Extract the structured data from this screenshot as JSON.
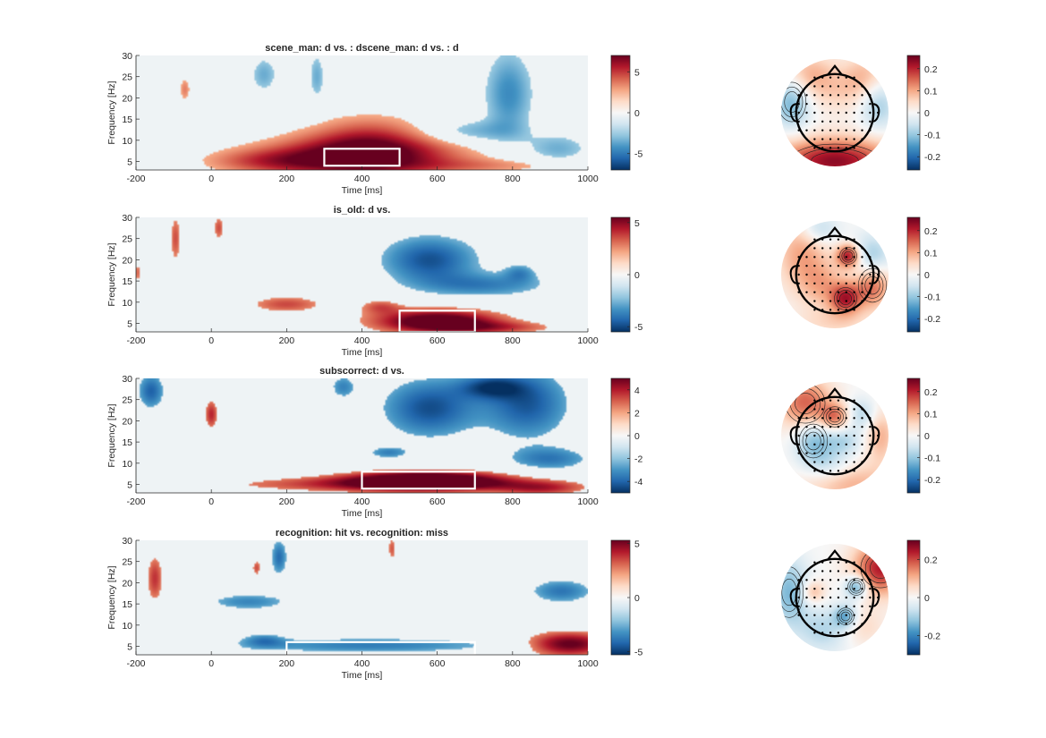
{
  "figure": {
    "x_ticks": [
      "-200",
      "0",
      "200",
      "400",
      "600",
      "800",
      "1000"
    ],
    "y_ticks": [
      "5",
      "10",
      "15",
      "20",
      "25",
      "30"
    ],
    "xlabel": "Time [ms]",
    "ylabel": "Frequency [Hz]"
  },
  "colors": {
    "colormap": [
      "#053061",
      "#2166ac",
      "#4393c3",
      "#92c5de",
      "#d1e5f0",
      "#f7f7f7",
      "#fddbc7",
      "#f4a582",
      "#d6604d",
      "#b2182b",
      "#67001f"
    ],
    "plot_background": "#eef3f5",
    "roi_box": "#ffffff"
  },
  "chart_data": [
    {
      "type": "heatmap",
      "title": "scene_man: d vs. : dscene_man: d vs. : d",
      "xlabel": "Time [ms]",
      "ylabel": "Frequency [Hz]",
      "xlim": [
        -200,
        1000
      ],
      "ylim": [
        3,
        30
      ],
      "x_ticks": [
        -200,
        0,
        200,
        400,
        600,
        800,
        1000
      ],
      "y_ticks": [
        5,
        10,
        15,
        20,
        25,
        30
      ],
      "clim": [
        -7,
        7
      ],
      "colorbar_ticks": [
        -5,
        0,
        5
      ],
      "colorbar_tick_labels": [
        "-5",
        "0",
        "5"
      ],
      "roi": {
        "time": [
          300,
          500
        ],
        "freq": [
          4,
          8
        ]
      },
      "blobs": [
        {
          "t": 140,
          "f": 25.5,
          "st": 25,
          "sf": 3,
          "v": -2.2
        },
        {
          "t": -70,
          "f": 22,
          "st": 10,
          "sf": 2,
          "v": 2.3
        },
        {
          "t": 280,
          "f": 25,
          "st": 15,
          "sf": 4,
          "v": -2.2
        },
        {
          "t": 400,
          "f": 6,
          "st": 180,
          "sf": 3.5,
          "v": 6.5
        },
        {
          "t": 420,
          "f": 11,
          "st": 110,
          "sf": 4,
          "v": 2.6
        },
        {
          "t": 150,
          "f": 5,
          "st": 120,
          "sf": 2,
          "v": 2.5
        },
        {
          "t": 790,
          "f": 21,
          "st": 45,
          "sf": 7,
          "v": -3.2
        },
        {
          "t": 690,
          "f": 12,
          "st": 90,
          "sf": 2,
          "v": -2.2
        },
        {
          "t": 920,
          "f": 8,
          "st": 60,
          "sf": 2.5,
          "v": -2.2
        },
        {
          "t": 760,
          "f": 4,
          "st": 180,
          "sf": 1.2,
          "v": 1.6
        }
      ],
      "topo_colorbar_ticks": [
        "0.2",
        "0.1",
        "0",
        "-0.1",
        "-0.2"
      ],
      "topo_spots": [
        {
          "x": 0,
          "y": -0.9,
          "sx": 0.8,
          "sy": 0.3,
          "v": 0.9
        },
        {
          "x": -0.8,
          "y": 0.2,
          "sx": 0.25,
          "sy": 0.35,
          "v": -0.5
        },
        {
          "x": 0.8,
          "y": 0.2,
          "sx": 0.25,
          "sy": 0.35,
          "v": -0.4
        },
        {
          "x": -0.5,
          "y": 0.7,
          "sx": 0.35,
          "sy": 0.3,
          "v": 0.35
        },
        {
          "x": 0.6,
          "y": 0.7,
          "sx": 0.3,
          "sy": 0.3,
          "v": 0.3
        },
        {
          "x": 0.2,
          "y": 0.4,
          "sx": 0.5,
          "sy": 0.3,
          "v": 0.2
        }
      ]
    },
    {
      "type": "heatmap",
      "title": "is_old: d vs.",
      "xlabel": "Time [ms]",
      "ylabel": "Frequency [Hz]",
      "xlim": [
        -200,
        1000
      ],
      "ylim": [
        3,
        30
      ],
      "x_ticks": [
        -200,
        0,
        200,
        400,
        600,
        800,
        1000
      ],
      "y_ticks": [
        5,
        10,
        15,
        20,
        25,
        30
      ],
      "clim": [
        -5.5,
        5.5
      ],
      "colorbar_ticks": [
        -5,
        0,
        5
      ],
      "colorbar_tick_labels": [
        "-5",
        "0",
        "5"
      ],
      "roi": {
        "time": [
          500,
          700
        ],
        "freq": [
          3,
          8
        ]
      },
      "blobs": [
        {
          "t": -95,
          "f": 25,
          "st": 10,
          "sf": 4,
          "v": 2.3
        },
        {
          "t": 20,
          "f": 27.5,
          "st": 10,
          "sf": 2,
          "v": 2.3
        },
        {
          "t": -195,
          "f": 17,
          "st": 5,
          "sf": 1.5,
          "v": 2.0
        },
        {
          "t": 200,
          "f": 9.5,
          "st": 70,
          "sf": 1.4,
          "v": 2.4
        },
        {
          "t": 450,
          "f": 9,
          "st": 40,
          "sf": 1.2,
          "v": 2.0
        },
        {
          "t": 600,
          "f": 5.5,
          "st": 120,
          "sf": 2,
          "v": 5.5
        },
        {
          "t": 760,
          "f": 4,
          "st": 120,
          "sf": 1,
          "v": 2.0
        },
        {
          "t": 580,
          "f": 20,
          "st": 90,
          "sf": 4,
          "v": -3.6
        },
        {
          "t": 730,
          "f": 14,
          "st": 120,
          "sf": 2,
          "v": -2.4
        },
        {
          "t": 820,
          "f": 17,
          "st": 30,
          "sf": 1.5,
          "v": -2.0
        }
      ],
      "topo_colorbar_ticks": [
        "0.2",
        "0.1",
        "0",
        "-0.1",
        "-0.2"
      ],
      "topo_spots": [
        {
          "x": -0.6,
          "y": 0.4,
          "sx": 0.35,
          "sy": 0.5,
          "v": 0.4
        },
        {
          "x": 0.7,
          "y": -0.2,
          "sx": 0.25,
          "sy": 0.3,
          "v": 0.6
        },
        {
          "x": 0.2,
          "y": -0.45,
          "sx": 0.2,
          "sy": 0.2,
          "v": 0.7
        },
        {
          "x": 0.25,
          "y": 0.35,
          "sx": 0.15,
          "sy": 0.15,
          "v": 0.8
        },
        {
          "x": -0.2,
          "y": -0.2,
          "sx": 0.3,
          "sy": 0.3,
          "v": 0.3
        },
        {
          "x": 0.7,
          "y": 0.3,
          "sx": 0.25,
          "sy": 0.3,
          "v": -0.4
        },
        {
          "x": -0.3,
          "y": 0.85,
          "sx": 0.25,
          "sy": 0.2,
          "v": -0.35
        },
        {
          "x": 0,
          "y": -0.9,
          "sx": 0.5,
          "sy": 0.2,
          "v": 0.2
        }
      ]
    },
    {
      "type": "heatmap",
      "title": "subscorrect: d vs.",
      "xlabel": "Time [ms]",
      "ylabel": "Frequency [Hz]",
      "xlim": [
        -200,
        1000
      ],
      "ylim": [
        3,
        30
      ],
      "x_ticks": [
        -200,
        0,
        200,
        400,
        600,
        800,
        1000
      ],
      "y_ticks": [
        5,
        10,
        15,
        20,
        25,
        30
      ],
      "clim": [
        -5,
        5
      ],
      "colorbar_ticks": [
        -4,
        -2,
        0,
        2,
        4
      ],
      "colorbar_tick_labels": [
        "-4",
        "-2",
        "0",
        "2",
        "4"
      ],
      "roi": {
        "time": [
          400,
          700
        ],
        "freq": [
          4,
          8
        ]
      },
      "blobs": [
        {
          "t": -160,
          "f": 27,
          "st": 25,
          "sf": 3,
          "v": -2.8
        },
        {
          "t": 0,
          "f": 21.5,
          "st": 12,
          "sf": 2.5,
          "v": 2.6
        },
        {
          "t": 350,
          "f": 28,
          "st": 25,
          "sf": 2,
          "v": -2.0
        },
        {
          "t": 570,
          "f": 6,
          "st": 150,
          "sf": 1.6,
          "v": 5.2
        },
        {
          "t": 450,
          "f": 5,
          "st": 320,
          "sf": 1.3,
          "v": 2.3
        },
        {
          "t": 880,
          "f": 4,
          "st": 80,
          "sf": 1.2,
          "v": 2.1
        },
        {
          "t": 580,
          "f": 23,
          "st": 90,
          "sf": 5,
          "v": -3.2
        },
        {
          "t": 840,
          "f": 24,
          "st": 80,
          "sf": 6,
          "v": -3.0
        },
        {
          "t": 900,
          "f": 11,
          "st": 80,
          "sf": 2,
          "v": -2.2
        },
        {
          "t": 470,
          "f": 12.5,
          "st": 40,
          "sf": 1,
          "v": -2.0
        },
        {
          "t": 740,
          "f": 28,
          "st": 60,
          "sf": 2,
          "v": -2.6
        }
      ],
      "topo_colorbar_ticks": [
        "0.2",
        "0.1",
        "0",
        "-0.1",
        "-0.2"
      ],
      "topo_spots": [
        {
          "x": -0.55,
          "y": 0.6,
          "sx": 0.35,
          "sy": 0.35,
          "v": 0.6
        },
        {
          "x": 0,
          "y": 0.35,
          "sx": 0.2,
          "sy": 0.18,
          "v": 0.5
        },
        {
          "x": 0.3,
          "y": -0.9,
          "sx": 0.6,
          "sy": 0.3,
          "v": 0.35
        },
        {
          "x": 0.85,
          "y": 0,
          "sx": 0.2,
          "sy": 0.35,
          "v": 0.35
        },
        {
          "x": -0.4,
          "y": -0.1,
          "sx": 0.25,
          "sy": 0.3,
          "v": -0.45
        },
        {
          "x": 0.15,
          "y": -0.1,
          "sx": 0.25,
          "sy": 0.2,
          "v": -0.3
        },
        {
          "x": 0.5,
          "y": 0.4,
          "sx": 0.2,
          "sy": 0.2,
          "v": -0.3
        },
        {
          "x": -0.1,
          "y": -0.55,
          "sx": 0.3,
          "sy": 0.2,
          "v": -0.25
        }
      ]
    },
    {
      "type": "heatmap",
      "title": "recognition: hit vs. recognition: miss",
      "xlabel": "Time [ms]",
      "ylabel": "Frequency [Hz]",
      "xlim": [
        -200,
        1000
      ],
      "ylim": [
        3,
        30
      ],
      "x_ticks": [
        -200,
        0,
        200,
        400,
        600,
        800,
        1000
      ],
      "y_ticks": [
        5,
        10,
        15,
        20,
        25,
        30
      ],
      "clim": [
        -5.3,
        5.3
      ],
      "colorbar_ticks": [
        -5,
        0,
        5
      ],
      "colorbar_tick_labels": [
        "-5",
        "0",
        "5"
      ],
      "roi": {
        "time": [
          200,
          700
        ],
        "freq": [
          3,
          6
        ]
      },
      "blobs": [
        {
          "t": -150,
          "f": 21,
          "st": 15,
          "sf": 4,
          "v": 2.6
        },
        {
          "t": 120,
          "f": 23.5,
          "st": 8,
          "sf": 1.3,
          "v": 2.2
        },
        {
          "t": 180,
          "f": 26,
          "st": 15,
          "sf": 3,
          "v": -2.8
        },
        {
          "t": 480,
          "f": 28,
          "st": 8,
          "sf": 2,
          "v": 2.0
        },
        {
          "t": 100,
          "f": 15.5,
          "st": 80,
          "sf": 1.4,
          "v": -2.2
        },
        {
          "t": 420,
          "f": 5.2,
          "st": 260,
          "sf": 1.3,
          "v": -2.4
        },
        {
          "t": 950,
          "f": 5.5,
          "st": 80,
          "sf": 2,
          "v": 4.5
        },
        {
          "t": 930,
          "f": 18,
          "st": 60,
          "sf": 2,
          "v": -2.6
        },
        {
          "t": 140,
          "f": 6.5,
          "st": 40,
          "sf": 1.2,
          "v": -2.0
        }
      ],
      "topo_colorbar_ticks": [
        "0.2",
        "0",
        "-0.2"
      ],
      "topo_spots": [
        {
          "x": 0.85,
          "y": 0.55,
          "sx": 0.35,
          "sy": 0.35,
          "v": 0.8
        },
        {
          "x": -0.85,
          "y": 0.1,
          "sx": 0.25,
          "sy": 0.45,
          "v": -0.45
        },
        {
          "x": 0.4,
          "y": 0.2,
          "sx": 0.15,
          "sy": 0.15,
          "v": -0.6
        },
        {
          "x": 0.2,
          "y": -0.35,
          "sx": 0.15,
          "sy": 0.15,
          "v": -0.5
        },
        {
          "x": -0.2,
          "y": -0.6,
          "sx": 0.35,
          "sy": 0.3,
          "v": -0.3
        },
        {
          "x": -0.4,
          "y": 0.1,
          "sx": 0.15,
          "sy": 0.15,
          "v": 0.35
        },
        {
          "x": 0.5,
          "y": -0.55,
          "sx": 0.3,
          "sy": 0.25,
          "v": 0.2
        }
      ]
    }
  ]
}
